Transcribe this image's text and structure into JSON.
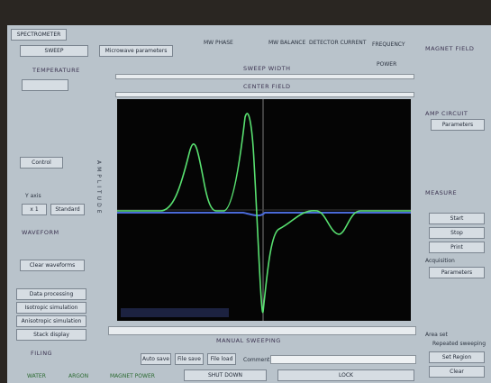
{
  "tab": "SPECTROMETER",
  "top": {
    "sweep_button": "SWEEP",
    "mw_button": "Microwave parameters",
    "mw_phase": "MW PHASE",
    "mw_balance": "MW BALANCE",
    "detector_current": "DETECTOR CURRENT",
    "frequency": "FREQUENCY",
    "power": "POWER",
    "sweep_width": "SWEEP WIDTH",
    "center_field": "CENTER FIELD"
  },
  "left": {
    "temperature": "TEMPERATURE",
    "control": "Control",
    "y_axis": "Y axis",
    "scale": "x 1",
    "standard": "Standard",
    "waveform": "WAVEFORM",
    "clear": "Clear waveforms",
    "buttons": [
      "Data processing",
      "Isotropic simulation",
      "Anisotropic simulation",
      "Stack display"
    ]
  },
  "plot": {
    "axis_label": "AMPLITUDE"
  },
  "bottom": {
    "manual": "MANUAL SWEEPING",
    "filing": "FILING",
    "auto_save": "Auto save",
    "file_save": "File save",
    "file_load": "File load",
    "comment": "Comment",
    "shut_down": "SHUT DOWN",
    "lock": "LOCK",
    "indicators": [
      "WATER",
      "ARGON",
      "MAGNET POWER"
    ]
  },
  "right": {
    "magnet_field": "MAGNET FIELD",
    "amp_circuit": "AMP CIRCUIT",
    "parameters": "Parameters",
    "measure": "MEASURE",
    "start": "Start",
    "stop": "Stop",
    "print": "Print",
    "acquisition": "Acquisition",
    "acq_parameters": "Parameters",
    "area_set": "Area set",
    "repeated": "Repeated sweeping",
    "set_region": "Set Region",
    "clear": "Clear"
  }
}
